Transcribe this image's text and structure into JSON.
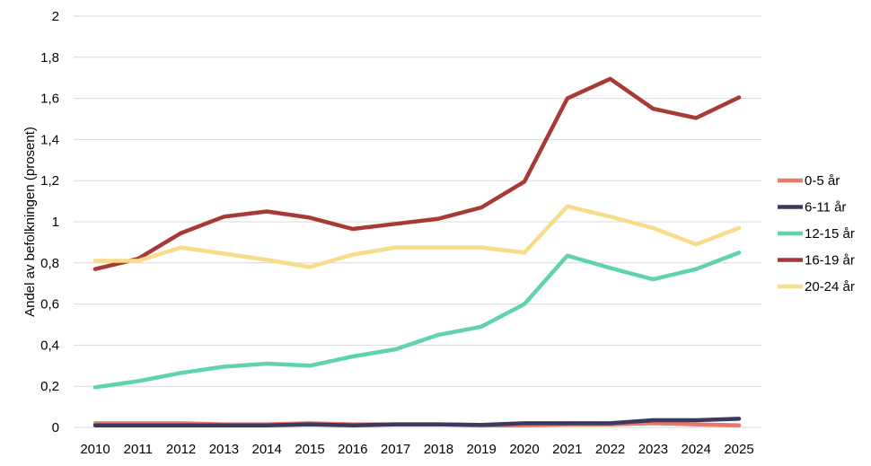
{
  "chart_data": {
    "type": "line",
    "title": "",
    "xlabel": "",
    "ylabel": "Andel av befolkningen (prosent)",
    "x": [
      "2010",
      "2011",
      "2012",
      "2013",
      "2014",
      "2015",
      "2016",
      "2017",
      "2018",
      "2019",
      "2020",
      "2021",
      "2022",
      "2023",
      "2024",
      "2025"
    ],
    "ylim": [
      0,
      2
    ],
    "yticks": [
      "0",
      "0,2",
      "0,4",
      "0,6",
      "0,8",
      "1",
      "1,2",
      "1,4",
      "1,6",
      "1,8",
      "2"
    ],
    "grid": true,
    "legend_position": "right",
    "series": [
      {
        "name": "0-5 år",
        "color": "#e8796a",
        "values": [
          0.02,
          0.02,
          0.02,
          0.015,
          0.015,
          0.02,
          0.015,
          0.015,
          0.015,
          0.01,
          0.01,
          0.015,
          0.015,
          0.02,
          0.015,
          0.01
        ]
      },
      {
        "name": "6-11 år",
        "color": "#3a3a60",
        "values": [
          0.01,
          0.01,
          0.01,
          0.01,
          0.01,
          0.015,
          0.01,
          0.015,
          0.015,
          0.012,
          0.02,
          0.02,
          0.02,
          0.035,
          0.035,
          0.042
        ]
      },
      {
        "name": "12-15 år",
        "color": "#5fd3ac",
        "values": [
          0.195,
          0.225,
          0.265,
          0.295,
          0.31,
          0.3,
          0.345,
          0.38,
          0.45,
          0.49,
          0.6,
          0.835,
          0.775,
          0.72,
          0.77,
          0.85
        ]
      },
      {
        "name": "16-19 år",
        "color": "#a83a36",
        "values": [
          0.77,
          0.82,
          0.945,
          1.025,
          1.05,
          1.02,
          0.965,
          0.99,
          1.015,
          1.07,
          1.195,
          1.6,
          1.695,
          1.55,
          1.505,
          1.605
        ]
      },
      {
        "name": "20-24 år",
        "color": "#f7dc8a",
        "values": [
          0.81,
          0.81,
          0.875,
          0.845,
          0.815,
          0.78,
          0.84,
          0.875,
          0.875,
          0.875,
          0.85,
          1.075,
          1.025,
          0.97,
          0.89,
          0.97
        ]
      }
    ]
  }
}
